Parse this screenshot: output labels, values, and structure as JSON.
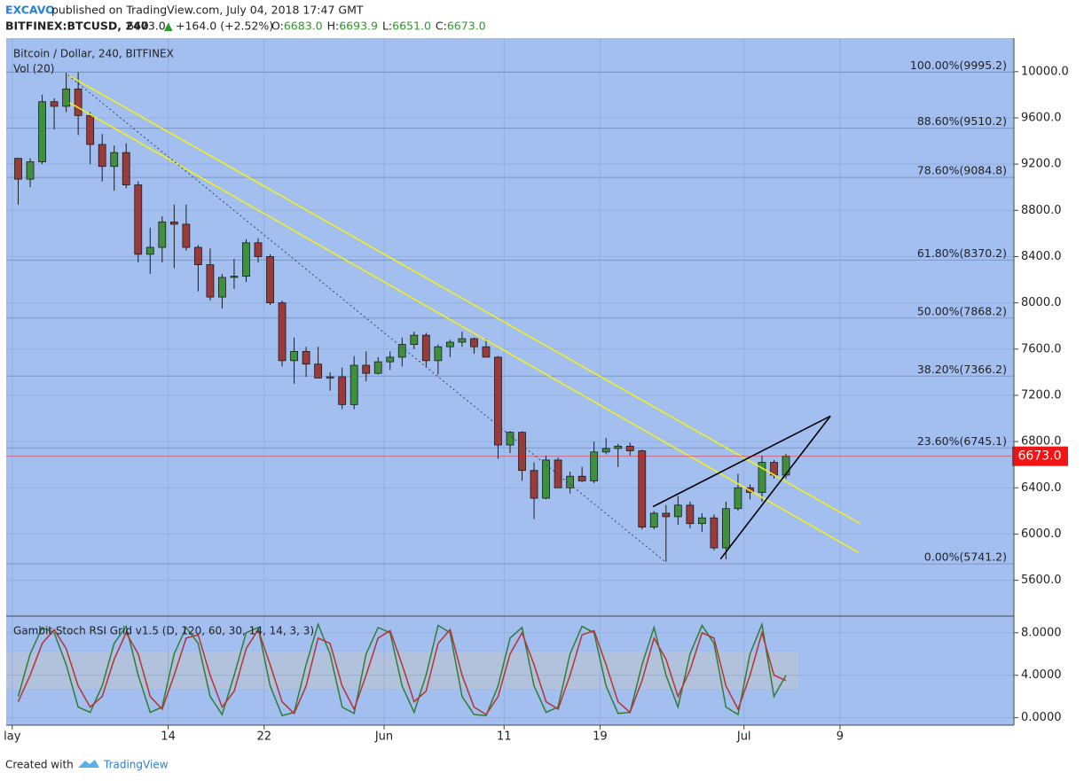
{
  "header": {
    "author": "EXCAVO",
    "published": "published on TradingView.com, July 04, 2018 17:47 GMT",
    "symbol": "BITFINEX:BTCUSD, 240",
    "last": "6673.0",
    "arrow": "▲",
    "change": "+164.0 (+2.52%)",
    "ohlc": [
      {
        "key": "O:",
        "value": "6683.0"
      },
      {
        "key": "H:",
        "value": "6693.9"
      },
      {
        "key": "L:",
        "value": "6651.0"
      },
      {
        "key": "C:",
        "value": "6673.0"
      }
    ]
  },
  "footer": {
    "created": "Created with",
    "brand": "TradingView"
  },
  "chart_data": [
    {
      "type": "candlestick",
      "title": "Bitcoin / Dollar, 240, BITFINEX",
      "subtitle": "Vol (20)",
      "up_color": "#3f8f3f",
      "down_color": "#9a3b3b",
      "grid": true,
      "x": [
        "2018-05-01",
        "2018-05-02",
        "2018-05-03",
        "2018-05-04",
        "2018-05-05",
        "2018-05-06",
        "2018-05-07",
        "2018-05-08",
        "2018-05-09",
        "2018-05-10",
        "2018-05-11",
        "2018-05-12",
        "2018-05-13",
        "2018-05-14",
        "2018-05-15",
        "2018-05-16",
        "2018-05-17",
        "2018-05-18",
        "2018-05-19",
        "2018-05-20",
        "2018-05-21",
        "2018-05-22",
        "2018-05-23",
        "2018-05-24",
        "2018-05-25",
        "2018-05-26",
        "2018-05-27",
        "2018-05-28",
        "2018-05-29",
        "2018-05-30",
        "2018-05-31",
        "2018-06-01",
        "2018-06-02",
        "2018-06-03",
        "2018-06-04",
        "2018-06-05",
        "2018-06-06",
        "2018-06-07",
        "2018-06-08",
        "2018-06-09",
        "2018-06-10",
        "2018-06-11",
        "2018-06-12",
        "2018-06-13",
        "2018-06-14",
        "2018-06-15",
        "2018-06-16",
        "2018-06-17",
        "2018-06-18",
        "2018-06-19",
        "2018-06-20",
        "2018-06-21",
        "2018-06-22",
        "2018-06-23",
        "2018-06-24",
        "2018-06-25",
        "2018-06-26",
        "2018-06-27",
        "2018-06-28",
        "2018-06-29",
        "2018-06-30",
        "2018-07-01",
        "2018-07-02",
        "2018-07-03",
        "2018-07-04"
      ],
      "open": [
        9250,
        9070,
        9220,
        9740,
        9700,
        9850,
        9620,
        9370,
        9180,
        9300,
        9020,
        8420,
        8480,
        8700,
        8680,
        8480,
        8330,
        8050,
        8220,
        8230,
        8520,
        8400,
        8000,
        7500,
        7580,
        7470,
        7350,
        7360,
        7120,
        7460,
        7390,
        7490,
        7530,
        7640,
        7720,
        7500,
        7620,
        7660,
        7690,
        7620,
        7530,
        6770,
        6880,
        6550,
        6310,
        6640,
        6400,
        6500,
        6460,
        6710,
        6740,
        6760,
        6720,
        6060,
        6180,
        6150,
        6250,
        6090,
        6140,
        5880,
        6220,
        6400,
        6360,
        6620,
        6510
      ],
      "high": [
        9250,
        9250,
        9800,
        9770,
        9990,
        9995,
        9650,
        9460,
        9360,
        9380,
        9050,
        8650,
        8750,
        8850,
        8850,
        8500,
        8470,
        8250,
        8380,
        8550,
        8560,
        8420,
        8020,
        7700,
        7620,
        7620,
        7400,
        7440,
        7540,
        7580,
        7530,
        7580,
        7700,
        7750,
        7740,
        7640,
        7680,
        7750,
        7700,
        7690,
        7540,
        6890,
        6890,
        6620,
        6680,
        6660,
        6540,
        6580,
        6800,
        6830,
        6780,
        6790,
        6730,
        6200,
        6250,
        6330,
        6280,
        6180,
        6170,
        6280,
        6520,
        6430,
        6680,
        6640,
        6694
      ],
      "low": [
        8850,
        9000,
        9200,
        9500,
        9650,
        9450,
        9200,
        9050,
        8970,
        8990,
        8350,
        8250,
        8350,
        8300,
        8450,
        8100,
        8020,
        7950,
        8120,
        8180,
        8350,
        7980,
        7450,
        7300,
        7360,
        7350,
        7240,
        7080,
        7080,
        7320,
        7380,
        7420,
        7450,
        7600,
        7440,
        7380,
        7530,
        7620,
        7560,
        7530,
        6650,
        6700,
        6460,
        6130,
        6300,
        6410,
        6350,
        6450,
        6440,
        6690,
        6580,
        6680,
        6040,
        6040,
        5760,
        6080,
        6050,
        6020,
        5860,
        5780,
        6200,
        6300,
        6280,
        6480,
        6480
      ],
      "close": [
        9070,
        9220,
        9740,
        9700,
        9850,
        9620,
        9370,
        9180,
        9300,
        9020,
        8420,
        8480,
        8700,
        8680,
        8480,
        8330,
        8050,
        8220,
        8230,
        8520,
        8400,
        8000,
        7500,
        7580,
        7470,
        7350,
        7360,
        7120,
        7460,
        7390,
        7490,
        7530,
        7640,
        7720,
        7500,
        7620,
        7660,
        7690,
        7620,
        7530,
        6770,
        6880,
        6550,
        6310,
        6640,
        6400,
        6500,
        6460,
        6710,
        6740,
        6760,
        6720,
        6060,
        6180,
        6150,
        6250,
        6090,
        6140,
        5880,
        6220,
        6400,
        6360,
        6620,
        6510,
        6673
      ],
      "xlim": [
        "2018-04-30T12:00",
        "2018-07-23T12:00"
      ],
      "xticks": [
        {
          "value": "2018-05-01",
          "label": "lay"
        },
        {
          "value": "2018-05-14",
          "label": "14"
        },
        {
          "value": "2018-05-22",
          "label": "22"
        },
        {
          "value": "2018-06-01",
          "label": "Jun"
        },
        {
          "value": "2018-06-11",
          "label": "11"
        },
        {
          "value": "2018-06-19",
          "label": "19"
        },
        {
          "value": "2018-07-01",
          "label": "Jul"
        },
        {
          "value": "2018-07-09",
          "label": "9"
        }
      ],
      "ylim": [
        5290,
        10290
      ],
      "yticks": [
        {
          "value": 5600,
          "label": "5600.0"
        },
        {
          "value": 6000,
          "label": "6000.0"
        },
        {
          "value": 6400,
          "label": "6400.0"
        },
        {
          "value": 6800,
          "label": "6800.0"
        },
        {
          "value": 7200,
          "label": "7200.0"
        },
        {
          "value": 7600,
          "label": "7600.0"
        },
        {
          "value": 8000,
          "label": "8000.0"
        },
        {
          "value": 8400,
          "label": "8400.0"
        },
        {
          "value": 8800,
          "label": "8800.0"
        },
        {
          "value": 9200,
          "label": "9200.0"
        },
        {
          "value": 9600,
          "label": "9600.0"
        },
        {
          "value": 10000,
          "label": "10000.0"
        }
      ],
      "last_price": {
        "value": 6673.0,
        "label": "6673.0",
        "color": "#f01414"
      },
      "fib_levels": [
        {
          "value": 9995.2,
          "label": "100.00%(9995.2)"
        },
        {
          "value": 9510.2,
          "label": "88.60%(9510.2)"
        },
        {
          "value": 9084.8,
          "label": "78.60%(9084.8)"
        },
        {
          "value": 8370.2,
          "label": "61.80%(8370.2)"
        },
        {
          "value": 7868.2,
          "label": "50.00%(7868.2)"
        },
        {
          "value": 7366.2,
          "label": "38.20%(7366.2)"
        },
        {
          "value": 6745.1,
          "label": "23.60%(6745.1)"
        },
        {
          "value": 5741.2,
          "label": "0.00%(5741.2)"
        }
      ],
      "drawings": [
        {
          "color": "#f2ee22",
          "dashed": false,
          "x": [
            "2018-05-05T16:00",
            "2018-07-10T16:00"
          ],
          "y": [
            9969,
            6091
          ]
        },
        {
          "color": "#f2ee22",
          "dashed": false,
          "x": [
            "2018-05-05T19:00",
            "2018-07-10T14:00"
          ],
          "y": [
            9731,
            5838
          ]
        },
        {
          "color": "#334466",
          "dashed": true,
          "x": [
            "2018-05-05T16:00",
            "2018-06-24T12:00"
          ],
          "y": [
            9969,
            5754
          ]
        },
        {
          "color": "#000000",
          "dashed": false,
          "x": [
            "2018-06-23T10:00",
            "2018-07-08T05:00"
          ],
          "y": [
            6237,
            7021
          ]
        },
        {
          "color": "#000000",
          "dashed": false,
          "x": [
            "2018-06-29T01:00",
            "2018-07-08T05:00"
          ],
          "y": [
            5784,
            7021
          ]
        }
      ]
    },
    {
      "type": "line",
      "title": "Gambit Stoch RSI Grid v1.5 (D, 120, 60, 30, 14, 14, 3, 3)",
      "x": [
        "2018-05-01",
        "2018-05-02",
        "2018-05-03",
        "2018-05-04",
        "2018-05-05",
        "2018-05-06",
        "2018-05-07",
        "2018-05-08",
        "2018-05-09",
        "2018-05-10",
        "2018-05-11",
        "2018-05-12",
        "2018-05-13",
        "2018-05-14",
        "2018-05-15",
        "2018-05-16",
        "2018-05-17",
        "2018-05-18",
        "2018-05-19",
        "2018-05-20",
        "2018-05-21",
        "2018-05-22",
        "2018-05-23",
        "2018-05-24",
        "2018-05-25",
        "2018-05-26",
        "2018-05-27",
        "2018-05-28",
        "2018-05-29",
        "2018-05-30",
        "2018-05-31",
        "2018-06-01",
        "2018-06-02",
        "2018-06-03",
        "2018-06-04",
        "2018-06-05",
        "2018-06-06",
        "2018-06-07",
        "2018-06-08",
        "2018-06-09",
        "2018-06-10",
        "2018-06-11",
        "2018-06-12",
        "2018-06-13",
        "2018-06-14",
        "2018-06-15",
        "2018-06-16",
        "2018-06-17",
        "2018-06-18",
        "2018-06-19",
        "2018-06-20",
        "2018-06-21",
        "2018-06-22",
        "2018-06-23",
        "2018-06-24",
        "2018-06-25",
        "2018-06-26",
        "2018-06-27",
        "2018-06-28",
        "2018-06-29",
        "2018-06-30",
        "2018-07-01",
        "2018-07-02",
        "2018-07-03",
        "2018-07-04"
      ],
      "series": [
        {
          "color": "#2f7d32",
          "values": [
            2,
            6,
            8.5,
            8,
            5,
            1,
            0.5,
            3,
            7,
            8.6,
            4,
            0.5,
            1,
            6,
            8.5,
            7,
            2,
            0.3,
            4,
            8,
            8.5,
            3,
            0.2,
            0.5,
            5,
            8.8,
            6,
            1,
            0.4,
            6,
            8.5,
            8,
            3,
            0.5,
            4,
            8.7,
            8,
            2,
            0.3,
            0.2,
            3,
            7.5,
            8.5,
            3,
            0.5,
            1,
            6,
            8.6,
            8,
            3,
            0.4,
            0.5,
            5,
            8.5,
            4,
            1,
            6,
            8.7,
            7,
            1,
            0.3,
            6,
            8.8,
            2,
            4
          ]
        },
        {
          "color": "#b8322e",
          "values": [
            1.5,
            4,
            7,
            8.3,
            6.5,
            3,
            1,
            2,
            5.5,
            8,
            6,
            2,
            0.8,
            4,
            7.5,
            7.8,
            4,
            1,
            2.5,
            6.5,
            8.3,
            5,
            1.5,
            0.4,
            3,
            7.5,
            7,
            3,
            0.8,
            4,
            7.5,
            8.2,
            5,
            1.5,
            2.5,
            7,
            8.3,
            4,
            1,
            0.3,
            2,
            6,
            8,
            5,
            1.5,
            0.8,
            4,
            7.8,
            8.2,
            5,
            1.5,
            0.5,
            3.5,
            7.5,
            5.5,
            2,
            4.5,
            8,
            7.5,
            3,
            0.8,
            4,
            8,
            4,
            3.5
          ]
        }
      ],
      "xlim": [
        "2018-04-30T12:00",
        "2018-07-23T12:00"
      ],
      "ylim": [
        -0.7,
        9.4
      ],
      "yticks": [
        {
          "value": 0,
          "label": "0.0000"
        },
        {
          "value": 4,
          "label": "4.0000"
        },
        {
          "value": 8,
          "label": "8.0000"
        }
      ]
    }
  ]
}
